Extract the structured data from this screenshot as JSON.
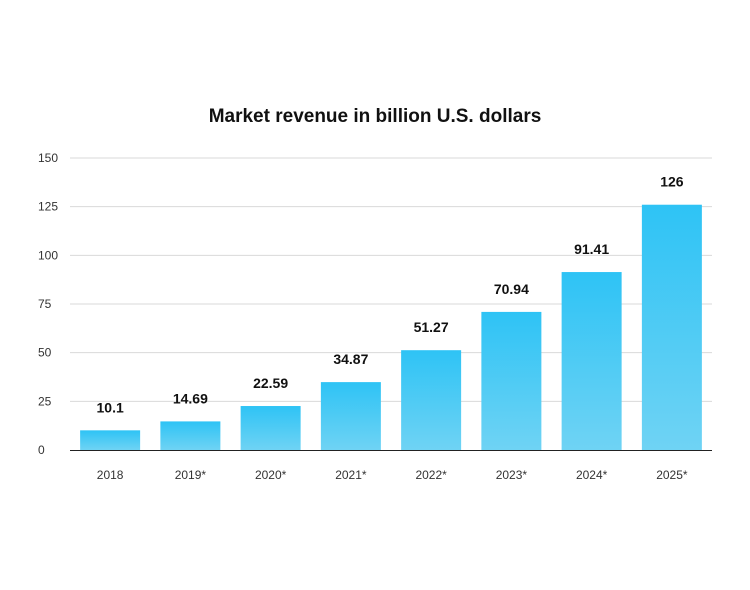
{
  "chart_data": {
    "type": "bar",
    "title": "Market revenue in billion U.S. dollars",
    "xlabel": "",
    "ylabel": "",
    "categories": [
      "2018",
      "2019*",
      "2020*",
      "2021*",
      "2022*",
      "2023*",
      "2024*",
      "2025*"
    ],
    "values": [
      10.1,
      14.69,
      22.59,
      34.87,
      51.27,
      70.94,
      91.41,
      126
    ],
    "data_labels": [
      "10.1",
      "14.69",
      "22.59",
      "34.87",
      "51.27",
      "70.94",
      "91.41",
      "126"
    ],
    "y_ticks": [
      0,
      25,
      50,
      75,
      100,
      125,
      150
    ],
    "ylim": [
      0,
      150
    ],
    "grid": true,
    "legend": "none",
    "colors": {
      "bar_top": "#2ec3f5",
      "bar_bottom": "#6fd3f4"
    }
  }
}
